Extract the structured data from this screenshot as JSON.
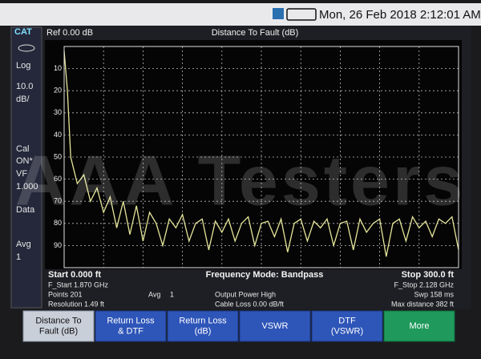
{
  "status_bar": {
    "datetime": "Mon, 26 Feb 2018 2:12:01 AM"
  },
  "sidebar": {
    "items": [
      [
        "CAT"
      ],
      [
        "Log"
      ],
      [
        "10.0",
        "dB/"
      ],
      [
        "Cal",
        "ON*"
      ],
      [
        "VF",
        "1.000"
      ],
      [
        "Data"
      ],
      [
        "Avg",
        "1"
      ]
    ]
  },
  "chart_data": {
    "type": "line",
    "title": "Distance To Fault (dB)",
    "reference": "Ref 0.00 dB",
    "x": [
      0,
      2.5,
      5,
      10,
      15,
      20,
      25,
      30,
      35,
      40,
      45,
      50,
      55,
      60,
      65,
      70,
      75,
      80,
      85,
      90,
      95,
      100,
      105,
      110,
      115,
      120,
      125,
      130,
      135,
      140,
      145,
      150,
      155,
      160,
      165,
      170,
      175,
      180,
      185,
      190,
      195,
      200,
      205,
      210,
      215,
      220,
      225,
      230,
      235,
      240,
      245,
      250,
      255,
      260,
      265,
      270,
      275,
      280,
      285,
      290,
      295,
      300
    ],
    "series": [
      {
        "color": "#e6e69a",
        "values": [
          2,
          20,
          50,
          62,
          58,
          70,
          64,
          75,
          68,
          82,
          70,
          85,
          72,
          88,
          75,
          80,
          90,
          78,
          82,
          76,
          88,
          80,
          78,
          92,
          79,
          84,
          78,
          88,
          80,
          77,
          90,
          80,
          79,
          86,
          78,
          93,
          80,
          78,
          88,
          79,
          82,
          78,
          90,
          80,
          79,
          92,
          78,
          84,
          80,
          78,
          95,
          80,
          78,
          88,
          77,
          82,
          79,
          86,
          78,
          80,
          77,
          92
        ]
      }
    ],
    "xlim": [
      0,
      300
    ],
    "ylim": [
      0,
      100
    ],
    "y_reversed": true,
    "yticks": [
      10,
      20,
      30,
      40,
      50,
      60,
      70,
      80,
      90
    ],
    "grid": true
  },
  "footer": {
    "start": "Start 0.000 ft",
    "mode": "Frequency Mode: Bandpass",
    "stop": "Stop 300.0 ft",
    "f_start": "F_Start 1.870 GHz",
    "f_stop": "F_Stop 2.128 GHz",
    "points": "Points 201",
    "avg": "Avg",
    "avg_value": "1",
    "power": "Output Power High",
    "sweep": "Swp 158 ms",
    "resolution": "Resolution 1.49 ft",
    "cable_loss": "Cable Loss 0.00 dB/ft",
    "max_distance": "Max distance 382 ft"
  },
  "softkeys": [
    [
      "Distance To",
      "Fault (dB)"
    ],
    [
      "Return Loss",
      "& DTF"
    ],
    [
      "Return Loss",
      "(dB)"
    ],
    [
      "VSWR"
    ],
    [
      "DTF",
      "(VSWR)"
    ],
    [
      "More"
    ]
  ],
  "watermark": "AAA Testers"
}
